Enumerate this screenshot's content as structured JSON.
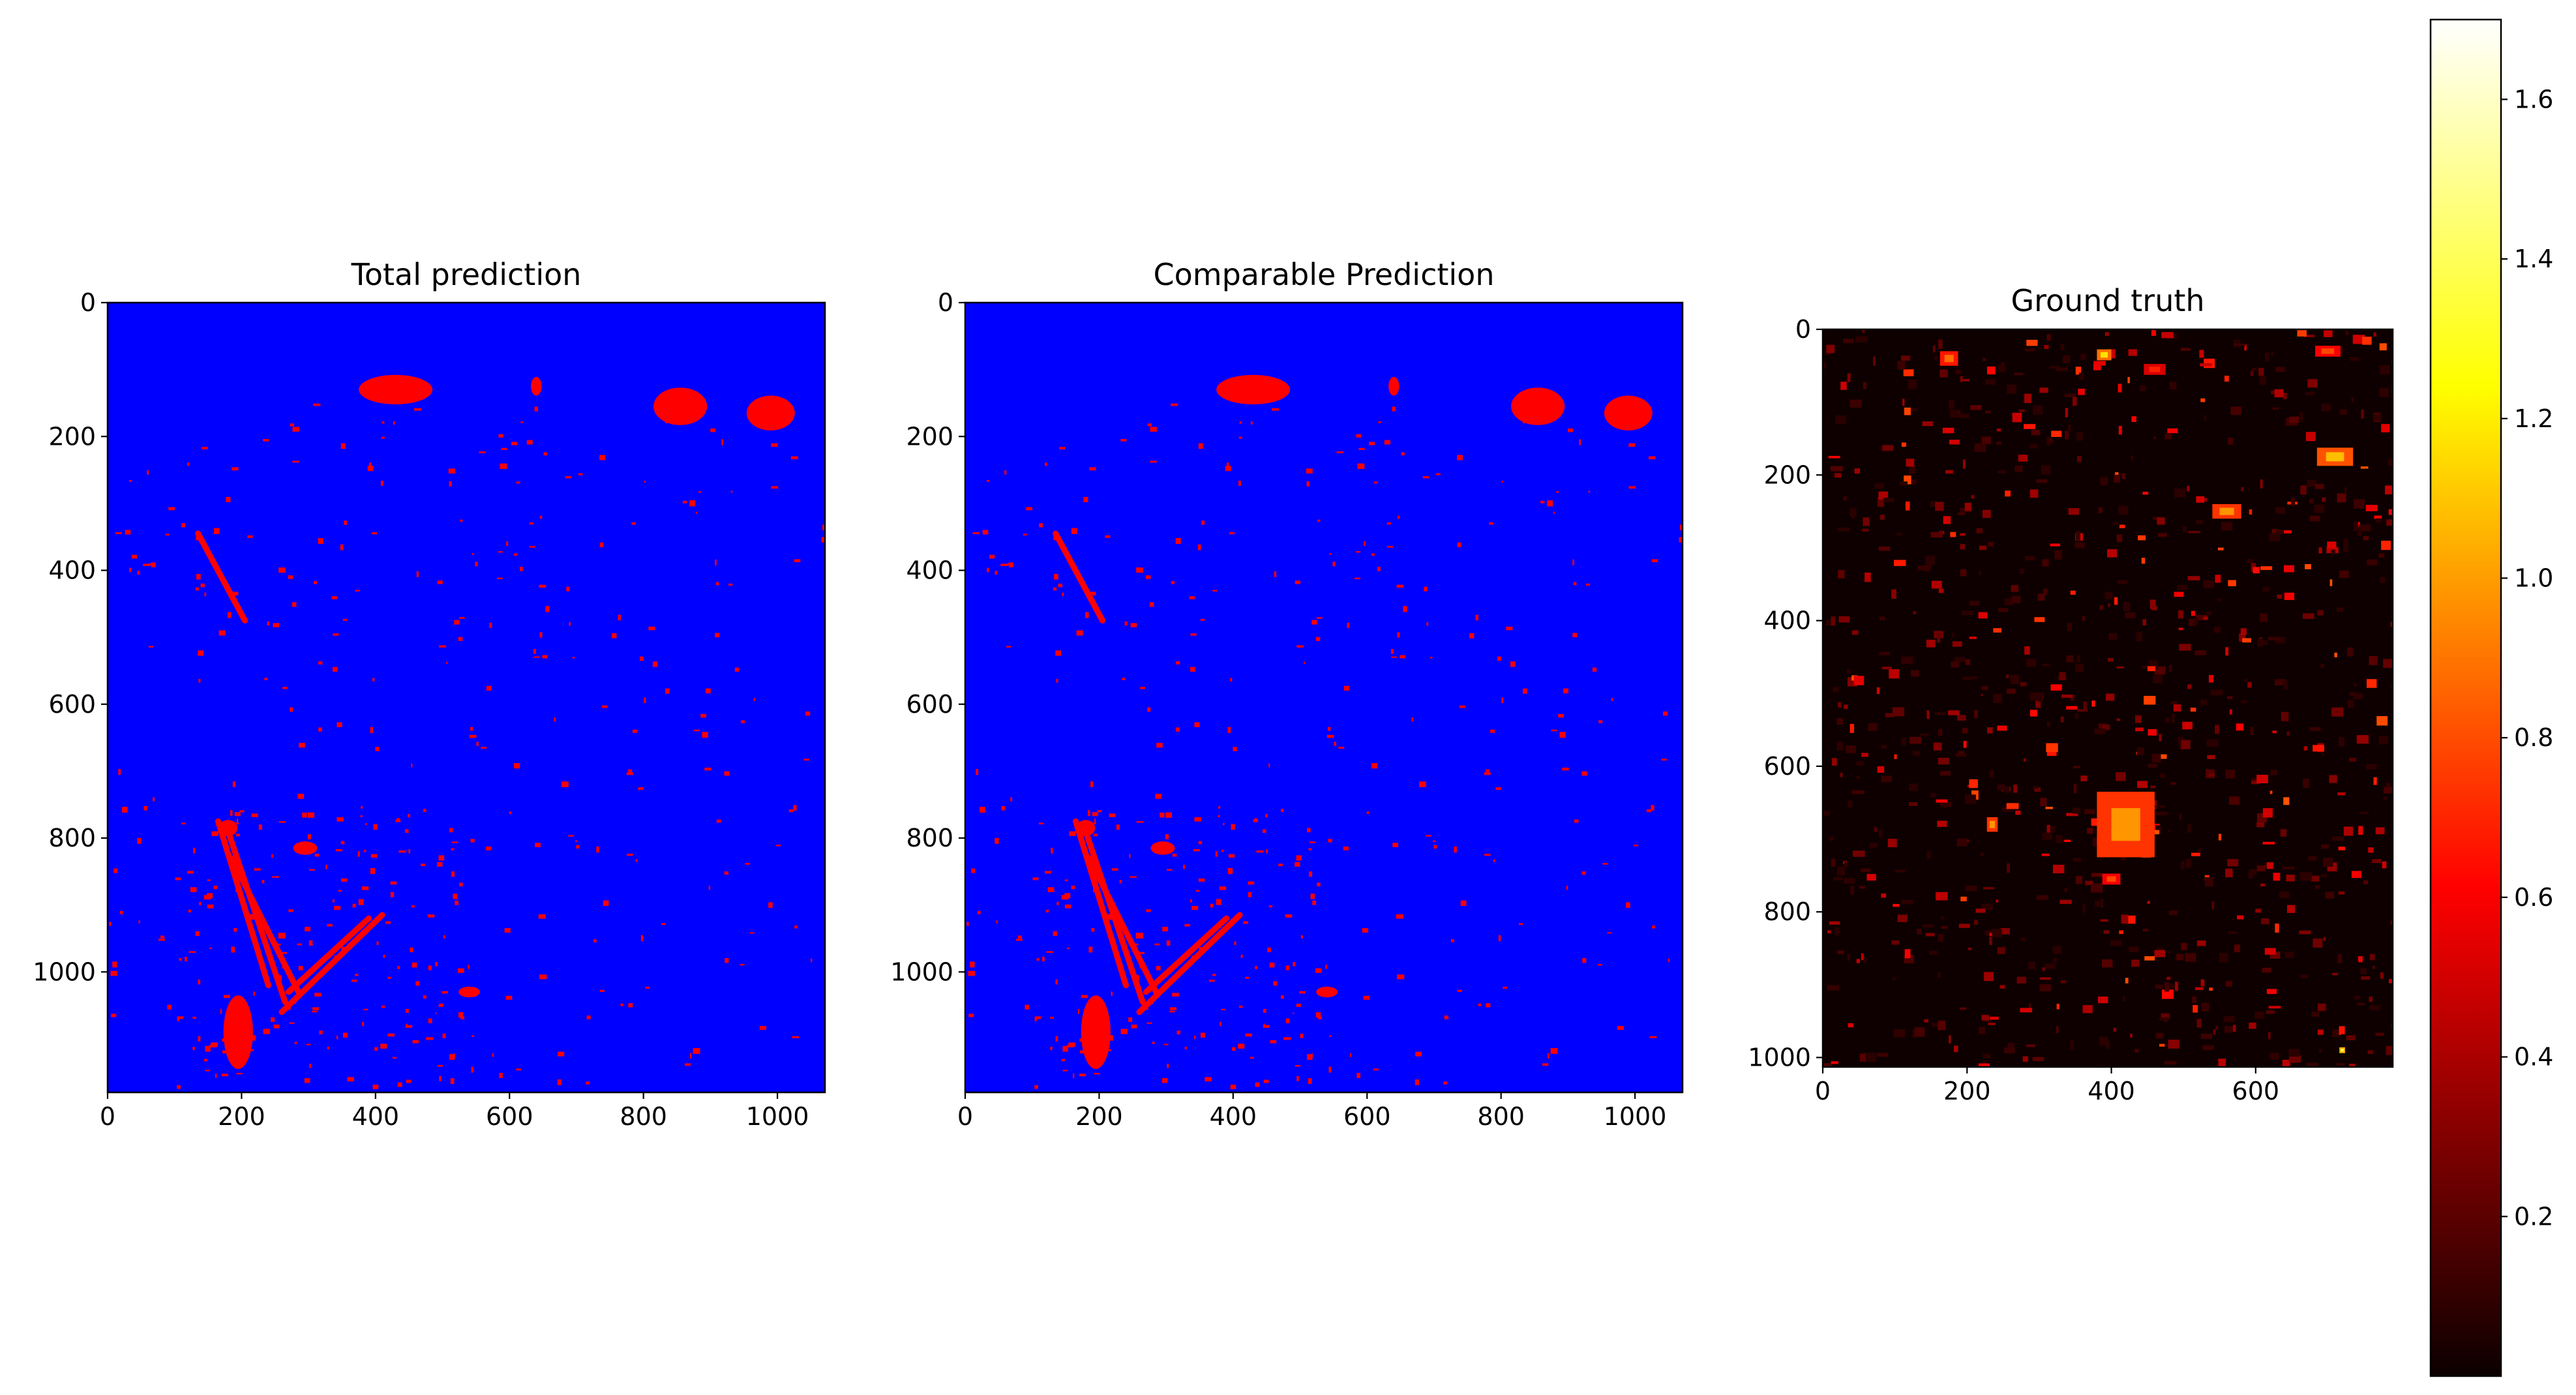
{
  "chart_data": [
    {
      "type": "heatmap",
      "title": "Total prediction",
      "xlim": [
        0,
        1071
      ],
      "ylim": [
        1180,
        0
      ],
      "xticks": [
        0,
        200,
        400,
        600,
        800,
        1000
      ],
      "yticks": [
        0,
        200,
        400,
        600,
        800,
        1000
      ],
      "background_color": "#0000ff",
      "foreground_color": "#ff0000",
      "regions": [
        {
          "kind": "blob",
          "x": 430,
          "y": 130,
          "rx": 55,
          "ry": 22
        },
        {
          "kind": "blob",
          "x": 640,
          "y": 125,
          "rx": 8,
          "ry": 14
        },
        {
          "kind": "blob",
          "x": 855,
          "y": 155,
          "rx": 40,
          "ry": 28
        },
        {
          "kind": "blob",
          "x": 990,
          "y": 165,
          "rx": 36,
          "ry": 26
        },
        {
          "kind": "blob",
          "x": 195,
          "y": 1090,
          "rx": 22,
          "ry": 55
        },
        {
          "kind": "blob",
          "x": 180,
          "y": 785,
          "rx": 14,
          "ry": 12
        },
        {
          "kind": "blob",
          "x": 295,
          "y": 815,
          "rx": 18,
          "ry": 10
        },
        {
          "kind": "blob",
          "x": 540,
          "y": 1030,
          "rx": 16,
          "ry": 8
        },
        {
          "kind": "line",
          "x1": 165,
          "y1": 775,
          "x2": 240,
          "y2": 1020
        },
        {
          "kind": "line",
          "x1": 180,
          "y1": 790,
          "x2": 265,
          "y2": 1045
        },
        {
          "kind": "line",
          "x1": 185,
          "y1": 830,
          "x2": 285,
          "y2": 1030
        },
        {
          "kind": "line",
          "x1": 260,
          "y1": 1060,
          "x2": 410,
          "y2": 915
        },
        {
          "kind": "line",
          "x1": 270,
          "y1": 1030,
          "x2": 390,
          "y2": 920
        },
        {
          "kind": "line",
          "x1": 135,
          "y1": 345,
          "x2": 205,
          "y2": 475
        }
      ],
      "speckle_seed": 7,
      "speckle_count": 420
    },
    {
      "type": "heatmap",
      "title": "Comparable Prediction",
      "xlim": [
        0,
        1071
      ],
      "ylim": [
        1180,
        0
      ],
      "xticks": [
        0,
        200,
        400,
        600,
        800,
        1000
      ],
      "yticks": [
        0,
        200,
        400,
        600,
        800,
        1000
      ],
      "background_color": "#0000ff",
      "foreground_color": "#ff0000",
      "regions": [
        {
          "kind": "blob",
          "x": 430,
          "y": 130,
          "rx": 55,
          "ry": 22
        },
        {
          "kind": "blob",
          "x": 640,
          "y": 125,
          "rx": 8,
          "ry": 14
        },
        {
          "kind": "blob",
          "x": 855,
          "y": 155,
          "rx": 40,
          "ry": 28
        },
        {
          "kind": "blob",
          "x": 990,
          "y": 165,
          "rx": 36,
          "ry": 26
        },
        {
          "kind": "blob",
          "x": 195,
          "y": 1090,
          "rx": 22,
          "ry": 55
        },
        {
          "kind": "blob",
          "x": 180,
          "y": 785,
          "rx": 14,
          "ry": 12
        },
        {
          "kind": "blob",
          "x": 295,
          "y": 815,
          "rx": 18,
          "ry": 10
        },
        {
          "kind": "blob",
          "x": 540,
          "y": 1030,
          "rx": 16,
          "ry": 8
        },
        {
          "kind": "line",
          "x1": 165,
          "y1": 775,
          "x2": 240,
          "y2": 1020
        },
        {
          "kind": "line",
          "x1": 180,
          "y1": 790,
          "x2": 265,
          "y2": 1045
        },
        {
          "kind": "line",
          "x1": 185,
          "y1": 830,
          "x2": 285,
          "y2": 1030
        },
        {
          "kind": "line",
          "x1": 260,
          "y1": 1060,
          "x2": 410,
          "y2": 915
        },
        {
          "kind": "line",
          "x1": 270,
          "y1": 1030,
          "x2": 390,
          "y2": 920
        },
        {
          "kind": "line",
          "x1": 135,
          "y1": 345,
          "x2": 205,
          "y2": 475
        }
      ],
      "speckle_seed": 7,
      "speckle_count": 420
    },
    {
      "type": "heatmap",
      "title": "Ground truth",
      "colormap": "hot",
      "xlim": [
        0,
        790
      ],
      "ylim": [
        1013,
        0
      ],
      "xticks": [
        0,
        200,
        400,
        600
      ],
      "yticks": [
        0,
        200,
        400,
        600,
        800,
        1000
      ],
      "colorbar": {
        "range": [
          0.0,
          1.7
        ],
        "ticks": [
          0.2,
          0.4,
          0.6,
          0.8,
          1.0,
          1.2,
          1.4,
          1.6
        ],
        "tick_labels": [
          "0.2",
          "0.4",
          "0.6",
          "0.8",
          "1.0",
          "1.2",
          "1.4",
          "1.6"
        ]
      },
      "hotspots": [
        {
          "x": 420,
          "y": 680,
          "w": 80,
          "h": 90,
          "value": 1.0
        },
        {
          "x": 400,
          "y": 755,
          "w": 25,
          "h": 15,
          "value": 0.8
        },
        {
          "x": 175,
          "y": 40,
          "w": 25,
          "h": 20,
          "value": 0.9
        },
        {
          "x": 390,
          "y": 35,
          "w": 20,
          "h": 15,
          "value": 1.2
        },
        {
          "x": 700,
          "y": 30,
          "w": 35,
          "h": 15,
          "value": 0.8
        },
        {
          "x": 710,
          "y": 175,
          "w": 50,
          "h": 25,
          "value": 1.1
        },
        {
          "x": 560,
          "y": 250,
          "w": 40,
          "h": 20,
          "value": 1.0
        },
        {
          "x": 235,
          "y": 680,
          "w": 15,
          "h": 20,
          "value": 1.0
        },
        {
          "x": 720,
          "y": 990,
          "w": 8,
          "h": 8,
          "value": 1.4
        },
        {
          "x": 460,
          "y": 55,
          "w": 30,
          "h": 15,
          "value": 0.7
        }
      ],
      "speckle_seed": 11,
      "speckle_count": 900
    }
  ]
}
